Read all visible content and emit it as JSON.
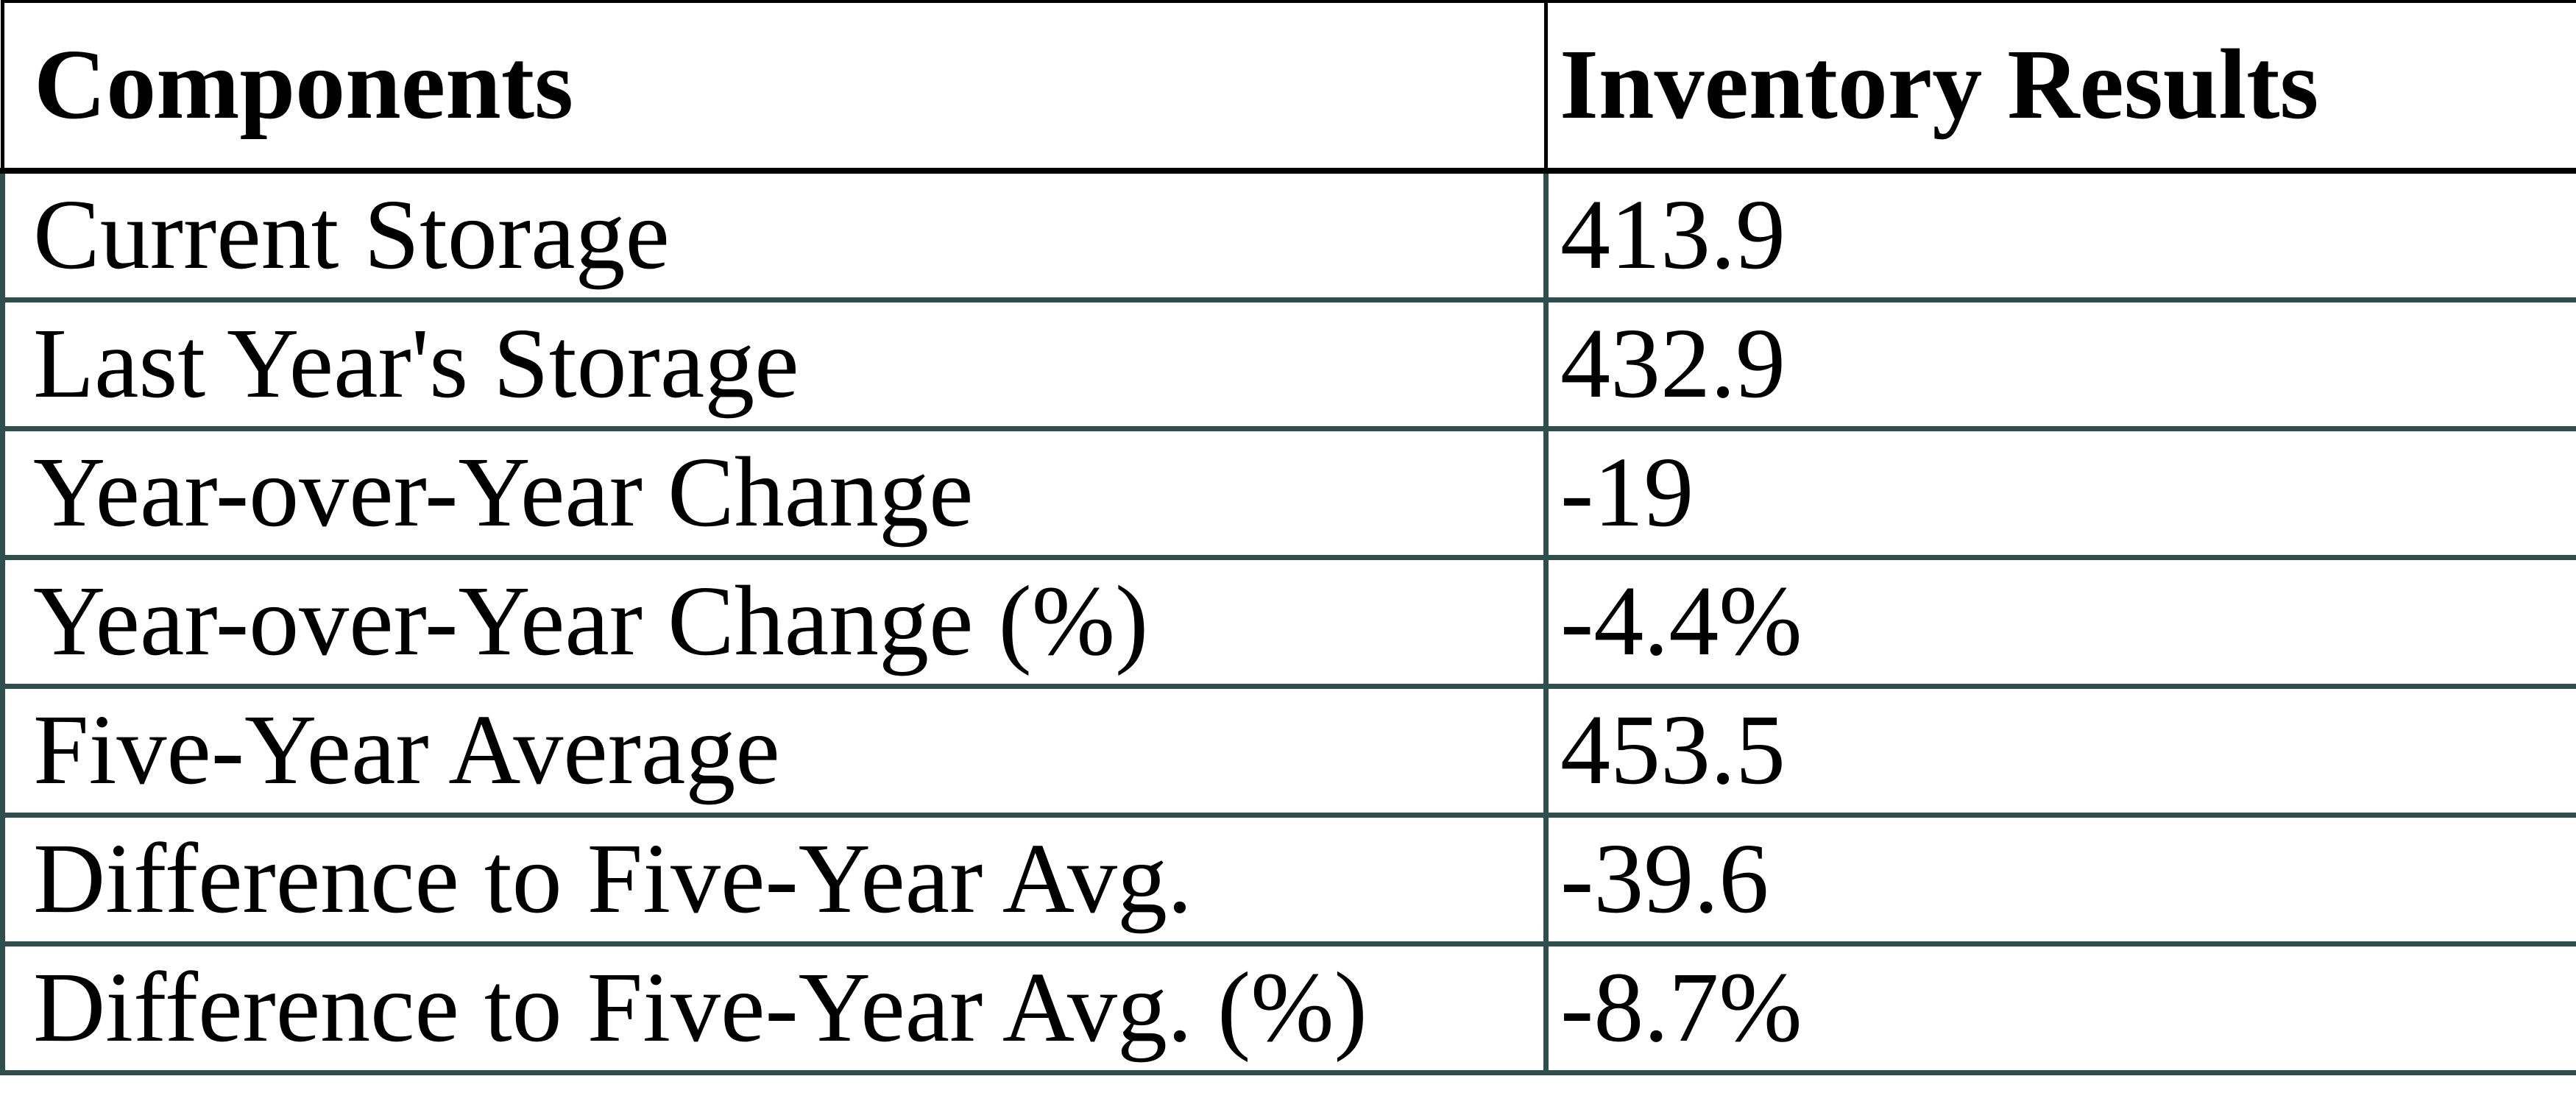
{
  "table": {
    "headers": {
      "components": "Components",
      "results": "Inventory Results"
    },
    "rows": [
      {
        "component": "Current Storage",
        "value": "413.9"
      },
      {
        "component": "Last Year's Storage",
        "value": "432.9"
      },
      {
        "component": "Year-over-Year Change",
        "value": "-19"
      },
      {
        "component": "Year-over-Year Change (%)",
        "value": "-4.4%"
      },
      {
        "component": "Five-Year Average",
        "value": "453.5"
      },
      {
        "component": "Difference to Five-Year Avg.",
        "value": "-39.6"
      },
      {
        "component": "Difference to Five-Year Avg. (%)",
        "value": "-8.7%"
      }
    ]
  },
  "colors": {
    "header_border": "#000000",
    "body_border": "#2F4F4F",
    "text": "#000000",
    "background": "#FFFFFF"
  },
  "chart_data": {
    "type": "table",
    "title": "",
    "columns": [
      "Components",
      "Inventory Results"
    ],
    "rows": [
      [
        "Current Storage",
        "413.9"
      ],
      [
        "Last Year's Storage",
        "432.9"
      ],
      [
        "Year-over-Year Change",
        "-19"
      ],
      [
        "Year-over-Year Change (%)",
        "-4.4%"
      ],
      [
        "Five-Year Average",
        "453.5"
      ],
      [
        "Difference to Five-Year Avg.",
        "-39.6"
      ],
      [
        "Difference to Five-Year Avg. (%)",
        "-8.7%"
      ]
    ],
    "numeric_values": {
      "current_storage": 413.9,
      "last_year_storage": 432.9,
      "yoy_change": -19,
      "yoy_change_pct": -4.4,
      "five_year_average": 453.5,
      "diff_to_five_year_avg": -39.6,
      "diff_to_five_year_avg_pct": -8.7
    }
  }
}
